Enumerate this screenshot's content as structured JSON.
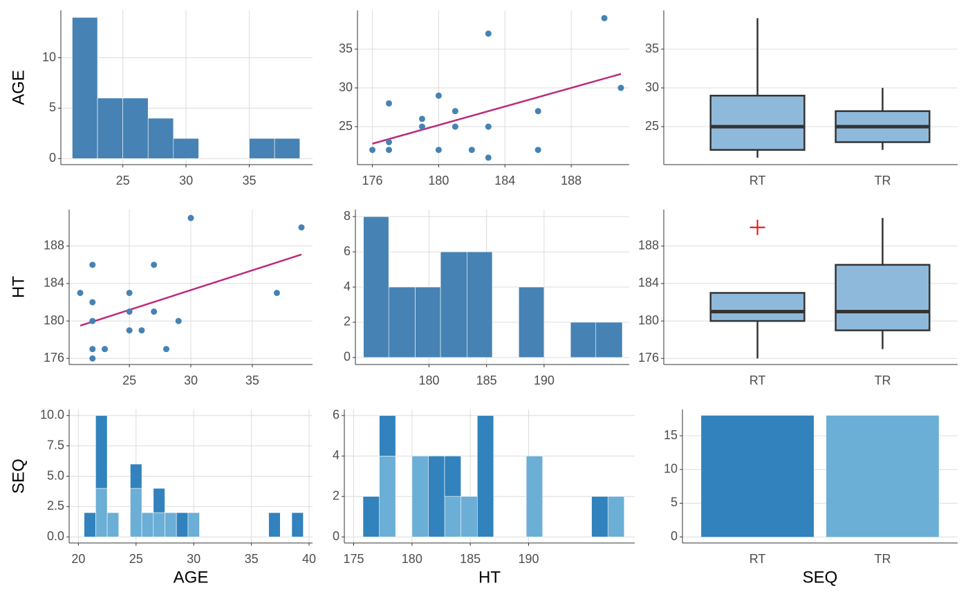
{
  "chart_data": [
    {
      "type": "histogram",
      "ylabel": "AGE",
      "bins": [
        21,
        23,
        25,
        27,
        29,
        31,
        33,
        35,
        37,
        39
      ],
      "values": [
        14,
        6,
        6,
        4,
        2,
        0,
        0,
        2,
        2
      ],
      "color": "#4682b4",
      "xlim": [
        20.1,
        40
      ],
      "xticks": [
        25,
        30,
        35
      ],
      "ylim": [
        -0.6,
        14.7
      ],
      "yticks": [
        0,
        5,
        10
      ],
      "grid": true
    },
    {
      "type": "scatter",
      "x": [
        176,
        177,
        177,
        177,
        179,
        179,
        180,
        180,
        181,
        181,
        182,
        183,
        183,
        183,
        186,
        186,
        190,
        191
      ],
      "y": [
        22,
        28,
        23,
        22,
        26,
        25,
        29,
        22,
        27,
        25,
        22,
        37,
        25,
        21,
        27,
        22,
        39,
        30
      ],
      "color": "#4682b4",
      "trend": {
        "x": [
          176,
          191
        ],
        "y": [
          22.8,
          31.8
        ],
        "color": "#bd2a78"
      },
      "xlim": [
        175.1,
        191.5
      ],
      "xticks": [
        176,
        180,
        184,
        188
      ],
      "ylim": [
        20.1,
        40
      ],
      "yticks": [
        25,
        30,
        35
      ],
      "grid": true
    },
    {
      "type": "box",
      "categories": [
        "RT",
        "TR"
      ],
      "boxes": [
        {
          "min": 21,
          "q1": 22,
          "median": 25,
          "q3": 29,
          "max": 39,
          "outliers": []
        },
        {
          "min": 22,
          "q1": 23,
          "median": 25,
          "q3": 27,
          "max": 30,
          "outliers": []
        }
      ],
      "color": "#8fb9da",
      "outlier_color": "#ff0000",
      "ylim": [
        20.1,
        40
      ],
      "yticks": [
        25,
        30,
        35
      ],
      "grid": true
    },
    {
      "type": "scatter",
      "ylabel": "HT",
      "x": [
        22,
        28,
        23,
        22,
        26,
        25,
        29,
        22,
        27,
        25,
        22,
        37,
        25,
        21,
        27,
        22,
        39,
        30
      ],
      "y": [
        176,
        177,
        177,
        177,
        179,
        179,
        180,
        180,
        181,
        181,
        182,
        183,
        183,
        183,
        186,
        186,
        190,
        191
      ],
      "color": "#4682b4",
      "trend": {
        "x": [
          21,
          39
        ],
        "y": [
          179.5,
          187.1
        ],
        "color": "#bd2a78"
      },
      "xlim": [
        20.1,
        39.9
      ],
      "xticks": [
        25,
        30,
        35
      ],
      "ylim": [
        175.35,
        191.9
      ],
      "yticks": [
        176,
        180,
        184,
        188
      ],
      "grid": true
    },
    {
      "type": "histogram",
      "bins": [
        174.3,
        176.5,
        178.8,
        181.0,
        183.3,
        185.5,
        187.8,
        190.0,
        192.3,
        194.5,
        196.8
      ],
      "values": [
        8,
        4,
        4,
        6,
        6,
        0,
        4,
        0,
        2,
        2
      ],
      "color": "#4682b4",
      "xlim": [
        173.6,
        197.4
      ],
      "xticks": [
        180,
        185,
        190
      ],
      "ylim": [
        -0.4,
        8.4
      ],
      "yticks": [
        0,
        2,
        4,
        6,
        8
      ],
      "grid": true
    },
    {
      "type": "box",
      "categories": [
        "RT",
        "TR"
      ],
      "boxes": [
        {
          "min": 176,
          "q1": 180,
          "median": 181,
          "q3": 183,
          "max": 183,
          "outliers": [
            190
          ]
        },
        {
          "min": 177,
          "q1": 179,
          "median": 181,
          "q3": 186,
          "max": 191,
          "outliers": []
        }
      ],
      "color": "#8fb9da",
      "outlier_color": "#ff0000",
      "ylim": [
        175.35,
        191.9
      ],
      "yticks": [
        176,
        180,
        184,
        188
      ],
      "grid": true
    },
    {
      "type": "histogram",
      "xlabel": "AGE",
      "ylabel": "SEQ",
      "bins": [
        20.5,
        21.5,
        22.5,
        23.5,
        24.5,
        25.5,
        26.5,
        27.5,
        28.5,
        29.5,
        30.5,
        31.5,
        32.5,
        33.5,
        34.5,
        35.5,
        36.5,
        37.5,
        38.5,
        39.5
      ],
      "series": [
        {
          "name": "TR",
          "color": "#6baed6",
          "values": [
            0,
            4,
            2,
            0,
            4,
            2,
            2,
            2,
            0,
            2,
            0,
            0,
            0,
            0,
            0,
            0,
            0,
            0,
            0
          ]
        },
        {
          "name": "RT",
          "color": "#3182bd",
          "values": [
            2,
            6,
            0,
            0,
            2,
            0,
            2,
            0,
            2,
            0,
            0,
            0,
            0,
            0,
            0,
            0,
            2,
            0,
            2
          ]
        }
      ],
      "xlim": [
        19.2,
        40.3
      ],
      "xticks": [
        20,
        25,
        30,
        35,
        40
      ],
      "ylim": [
        -0.5,
        10.5
      ],
      "yticks": [
        {
          "value": 0,
          "label": "0.0"
        },
        {
          "value": 2.5,
          "label": "2.5"
        },
        {
          "value": 5,
          "label": "5.0"
        },
        {
          "value": 7.5,
          "label": "7.5"
        },
        {
          "value": 10,
          "label": "10.0"
        }
      ],
      "grid": true
    },
    {
      "type": "histogram",
      "xlabel": "HT",
      "bins": [
        175.8,
        177.2,
        178.6,
        180.0,
        181.4,
        182.8,
        184.2,
        185.6,
        187.0,
        188.4,
        189.8,
        191.2,
        192.6,
        194.0,
        195.4,
        196.8,
        198.2
      ],
      "series": [
        {
          "name": "TR",
          "color": "#6baed6",
          "values": [
            0,
            4,
            0,
            4,
            0,
            2,
            2,
            0,
            0,
            0,
            4,
            0,
            0,
            0,
            0,
            2
          ]
        },
        {
          "name": "RT",
          "color": "#3182bd",
          "values": [
            2,
            2,
            0,
            0,
            4,
            2,
            0,
            6,
            0,
            0,
            0,
            0,
            0,
            0,
            2,
            0
          ]
        }
      ],
      "xlim": [
        174.2,
        199.1
      ],
      "xticks": [
        175,
        180,
        185,
        190
      ],
      "ylim": [
        -0.3,
        6.3
      ],
      "yticks": [
        0,
        2,
        4,
        6
      ],
      "grid": true
    },
    {
      "type": "bar",
      "xlabel": "SEQ",
      "categories": [
        "RT",
        "TR"
      ],
      "values": [
        18,
        18
      ],
      "colors": [
        "#3182bd",
        "#6baed6"
      ],
      "ylim": [
        -0.9,
        18.9
      ],
      "yticks": [
        0,
        5,
        10,
        15
      ],
      "grid": true
    }
  ]
}
